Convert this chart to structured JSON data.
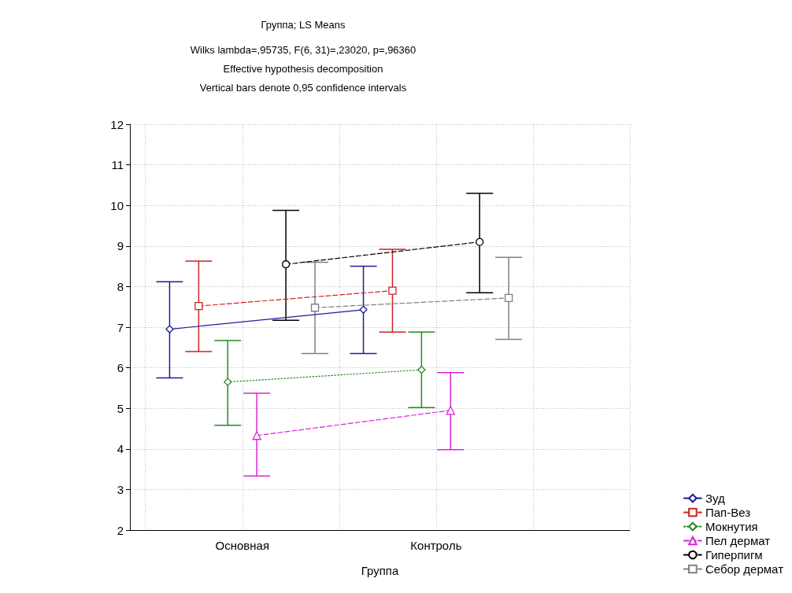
{
  "chart_data": {
    "type": "line",
    "title": "Группа; LS Means",
    "subtitle": "Wilks lambda=,95735, F(6, 31)=,23020, p=,96360\nEffective hypothesis decomposition\nVertical bars denote 0,95 confidence intervals",
    "xlabel": "Группа",
    "categories": [
      "Основная",
      "Контроль"
    ],
    "series": [
      {
        "name": "Зуд",
        "color": "#1c1c9a",
        "values": [
          6.95,
          7.43
        ],
        "errors": [
          [
            5.75,
            8.12
          ],
          [
            6.35,
            8.5
          ]
        ],
        "marker": "diamond",
        "line_style": "solid"
      },
      {
        "name": "Пап-Вез",
        "color": "#cc2222",
        "values": [
          7.52,
          7.9
        ],
        "errors": [
          [
            6.4,
            8.63
          ],
          [
            6.88,
            8.92
          ]
        ],
        "marker": "square",
        "line_style": "dashed"
      },
      {
        "name": "Мокнутия",
        "color": "#228b22",
        "values": [
          5.65,
          5.95
        ],
        "errors": [
          [
            4.58,
            6.67
          ],
          [
            5.02,
            6.88
          ]
        ],
        "marker": "diamond",
        "line_style": "dotted"
      },
      {
        "name": "Пел дермат",
        "color": "#dd22dd",
        "values": [
          4.33,
          4.95
        ],
        "errors": [
          [
            3.33,
            5.37
          ],
          [
            3.98,
            5.88
          ]
        ],
        "marker": "triangle",
        "line_style": "dashed"
      },
      {
        "name": "Гиперпигм",
        "color": "#000000",
        "values": [
          8.55,
          9.1
        ],
        "errors": [
          [
            7.17,
            9.88
          ],
          [
            7.85,
            10.3
          ]
        ],
        "marker": "circle",
        "line_style": "dashed"
      },
      {
        "name": "Себор дермат",
        "color": "#808080",
        "values": [
          7.48,
          7.72
        ],
        "errors": [
          [
            6.35,
            8.6
          ],
          [
            6.7,
            8.72
          ]
        ],
        "marker": "square",
        "line_style": "dashed"
      }
    ],
    "ylim": [
      2,
      12
    ],
    "yticks": [
      2,
      3,
      4,
      5,
      6,
      7,
      8,
      9,
      10,
      11,
      12
    ],
    "grid": true,
    "legend": "bottom right"
  }
}
